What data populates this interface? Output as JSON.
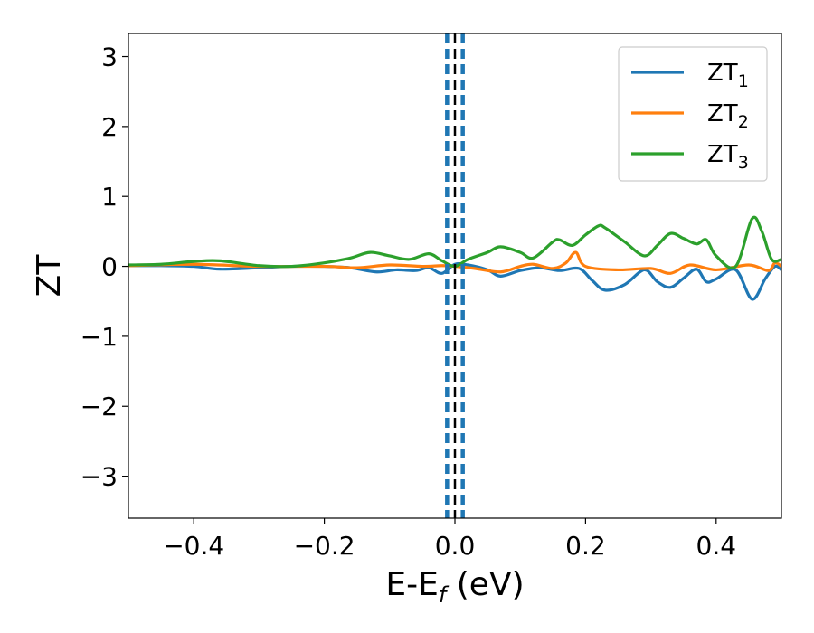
{
  "chart_data": {
    "type": "line",
    "xlabel": "E-E",
    "xlabel_sub": "f",
    "xlabel_unit": " (eV)",
    "ylabel": "ZT",
    "xlim": [
      -0.5,
      0.5
    ],
    "ylim": [
      -3.6,
      3.33
    ],
    "x_ticks": [
      -0.4,
      -0.2,
      0.0,
      0.2,
      0.4
    ],
    "x_tick_labels": [
      "−0.4",
      "−0.2",
      "0.0",
      "0.2",
      "0.4"
    ],
    "y_ticks": [
      -3,
      -2,
      -1,
      0,
      1,
      2,
      3
    ],
    "y_tick_labels": [
      "−3",
      "−2",
      "−1",
      "0",
      "1",
      "2",
      "3"
    ],
    "grid": false,
    "legend_position": "top-right",
    "vertical_lines": [
      {
        "x": -0.012,
        "style": "dashed",
        "color": "#1f77b4"
      },
      {
        "x": 0.012,
        "style": "dashed",
        "color": "#1f77b4"
      },
      {
        "x": 0.0,
        "style": "dashed",
        "color": "#000000"
      }
    ],
    "series": [
      {
        "name": "ZT",
        "sub": "1",
        "color": "#1f77b4",
        "x": [
          -0.5,
          -0.45,
          -0.4,
          -0.36,
          -0.3,
          -0.25,
          -0.2,
          -0.16,
          -0.12,
          -0.09,
          -0.06,
          -0.04,
          -0.02,
          0.0,
          0.02,
          0.05,
          0.07,
          0.1,
          0.13,
          0.16,
          0.19,
          0.21,
          0.23,
          0.26,
          0.29,
          0.31,
          0.33,
          0.35,
          0.37,
          0.385,
          0.4,
          0.43,
          0.455,
          0.475,
          0.49,
          0.5
        ],
        "y": [
          0.01,
          0.01,
          0.0,
          -0.04,
          -0.02,
          0.0,
          0.0,
          -0.02,
          -0.08,
          -0.05,
          -0.06,
          -0.02,
          -0.1,
          0.03,
          0.02,
          -0.05,
          -0.14,
          -0.06,
          -0.02,
          -0.06,
          -0.03,
          -0.2,
          -0.34,
          -0.26,
          -0.05,
          -0.22,
          -0.3,
          -0.17,
          -0.04,
          -0.22,
          -0.18,
          -0.05,
          -0.47,
          -0.18,
          0.0,
          -0.05
        ]
      },
      {
        "name": "ZT",
        "sub": "2",
        "color": "#ff7f0e",
        "x": [
          -0.5,
          -0.4,
          -0.3,
          -0.2,
          -0.15,
          -0.1,
          -0.05,
          -0.02,
          0.0,
          0.03,
          0.07,
          0.1,
          0.12,
          0.15,
          0.17,
          0.185,
          0.2,
          0.25,
          0.3,
          0.33,
          0.36,
          0.4,
          0.45,
          0.48,
          0.49,
          0.5
        ],
        "y": [
          0.01,
          0.03,
          0.0,
          0.0,
          -0.02,
          0.02,
          0.0,
          0.01,
          0.0,
          -0.03,
          -0.08,
          0.0,
          0.03,
          -0.03,
          0.05,
          0.2,
          0.0,
          -0.05,
          -0.03,
          -0.1,
          0.02,
          -0.05,
          0.02,
          -0.06,
          0.05,
          0.0
        ]
      },
      {
        "name": "ZT",
        "sub": "3",
        "color": "#2ca02c",
        "x": [
          -0.5,
          -0.45,
          -0.4,
          -0.36,
          -0.3,
          -0.25,
          -0.2,
          -0.16,
          -0.13,
          -0.1,
          -0.07,
          -0.04,
          -0.02,
          0.0,
          0.02,
          0.05,
          0.07,
          0.1,
          0.12,
          0.15,
          0.16,
          0.18,
          0.2,
          0.22,
          0.23,
          0.26,
          0.29,
          0.31,
          0.33,
          0.35,
          0.37,
          0.385,
          0.4,
          0.43,
          0.455,
          0.47,
          0.485,
          0.5
        ],
        "y": [
          0.02,
          0.03,
          0.07,
          0.08,
          0.01,
          0.0,
          0.05,
          0.12,
          0.2,
          0.15,
          0.1,
          0.18,
          0.08,
          0.0,
          0.1,
          0.2,
          0.28,
          0.2,
          0.12,
          0.35,
          0.38,
          0.3,
          0.45,
          0.58,
          0.55,
          0.35,
          0.15,
          0.3,
          0.47,
          0.4,
          0.32,
          0.38,
          0.15,
          0.0,
          0.68,
          0.5,
          0.1,
          0.1
        ]
      }
    ]
  }
}
